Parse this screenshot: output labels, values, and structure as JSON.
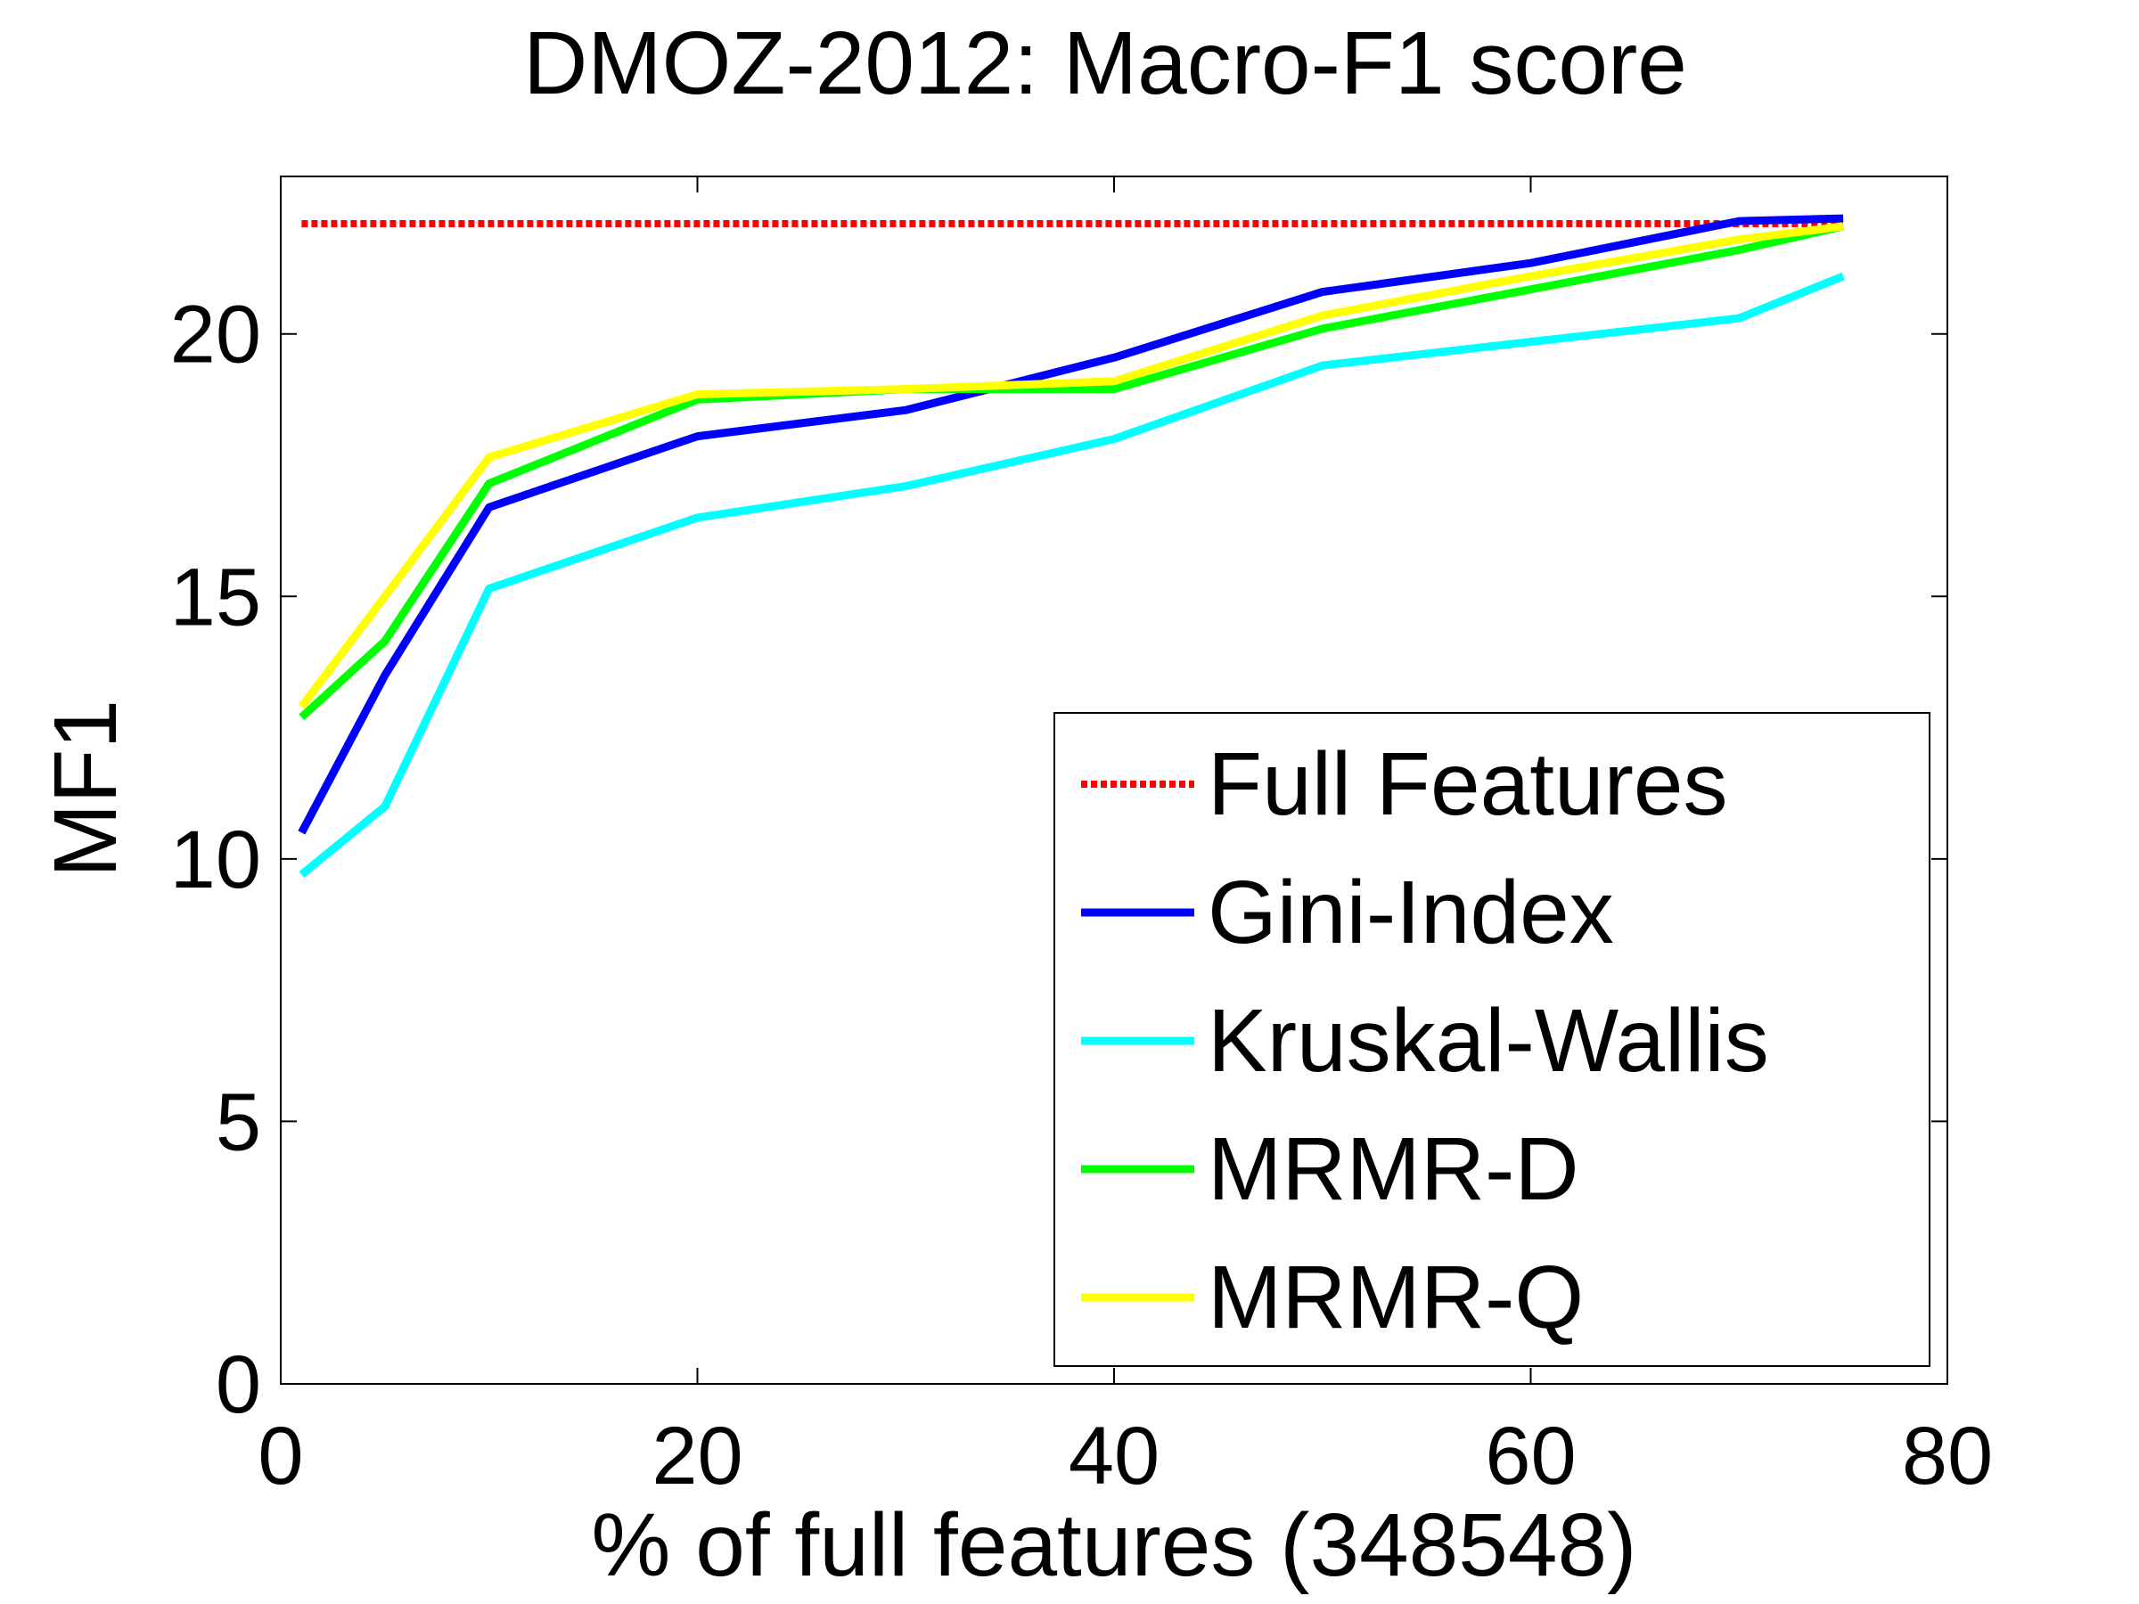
{
  "chart_data": {
    "type": "line",
    "title": "DMOZ-2012: Macro-F1 score",
    "xlabel": "% of full features (348548)",
    "ylabel": "MF1",
    "xlim": [
      0,
      80
    ],
    "ylim": [
      0,
      23
    ],
    "xticks": [
      "0",
      "20",
      "40",
      "60",
      "80"
    ],
    "yticks": [
      "0",
      "5",
      "10",
      "15",
      "20"
    ],
    "grid": false,
    "legend_position": "bottom-right",
    "series": [
      {
        "name": "Full Features",
        "color": "#ff0000",
        "style": "dotted",
        "x": [
          1,
          75
        ],
        "y": [
          22.1,
          22.1
        ]
      },
      {
        "name": "Gini-Index",
        "color": "#0000ff",
        "style": "solid",
        "x": [
          1,
          5,
          10,
          20,
          30,
          40,
          50,
          60,
          70,
          75
        ],
        "y": [
          10.5,
          13.5,
          16.7,
          18.05,
          18.55,
          19.55,
          20.8,
          21.35,
          22.15,
          22.2
        ]
      },
      {
        "name": "Kruskal-Wallis",
        "color": "#00ffff",
        "style": "solid",
        "x": [
          1,
          5,
          10,
          20,
          30,
          40,
          50,
          60,
          70,
          75
        ],
        "y": [
          9.7,
          11.0,
          15.15,
          16.5,
          17.1,
          18.0,
          19.4,
          19.85,
          20.3,
          21.1
        ]
      },
      {
        "name": "MRMR-D",
        "color": "#00ff00",
        "style": "solid",
        "x": [
          1,
          5,
          10,
          20,
          30,
          40,
          50,
          60,
          70,
          75
        ],
        "y": [
          12.7,
          14.15,
          17.15,
          18.75,
          18.95,
          18.95,
          20.1,
          20.85,
          21.6,
          22.05
        ]
      },
      {
        "name": "MRMR-Q",
        "color": "#ffff00",
        "style": "solid",
        "x": [
          1,
          5,
          10,
          20,
          30,
          40,
          50,
          60,
          70,
          75
        ],
        "y": [
          12.9,
          15.0,
          17.65,
          18.85,
          18.95,
          19.1,
          20.35,
          21.1,
          21.8,
          22.05
        ]
      }
    ]
  }
}
